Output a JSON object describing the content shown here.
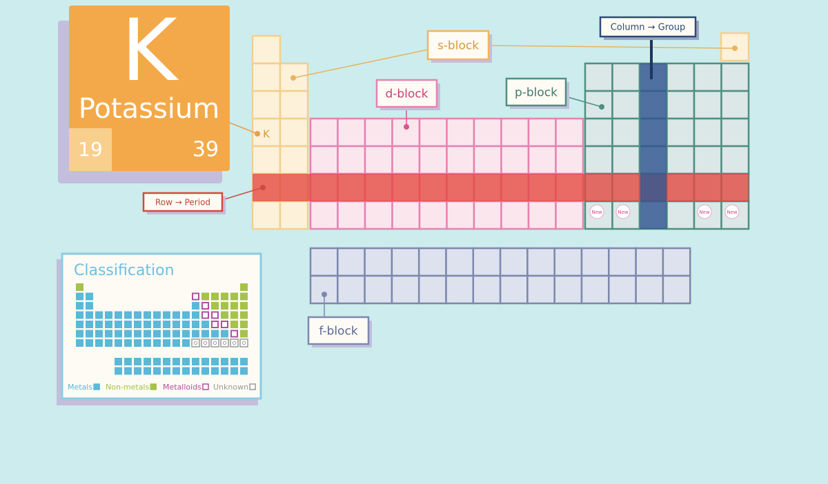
{
  "element_card": {
    "symbol": "K",
    "name": "Potassium",
    "atomic_number": 19,
    "mass_number": 39
  },
  "labels": {
    "s_block": "s-block",
    "d_block": "d-block",
    "p_block": "p-block",
    "f_block": "f-block",
    "column": "Column → Group",
    "row": "Row → Period",
    "k_marker": "K",
    "new": [
      "New",
      "New",
      "New",
      "New"
    ]
  },
  "classification": {
    "title": "Classification",
    "legend": [
      "Metals",
      "Non-metals",
      "Metalloids",
      "Unknown"
    ]
  }
}
